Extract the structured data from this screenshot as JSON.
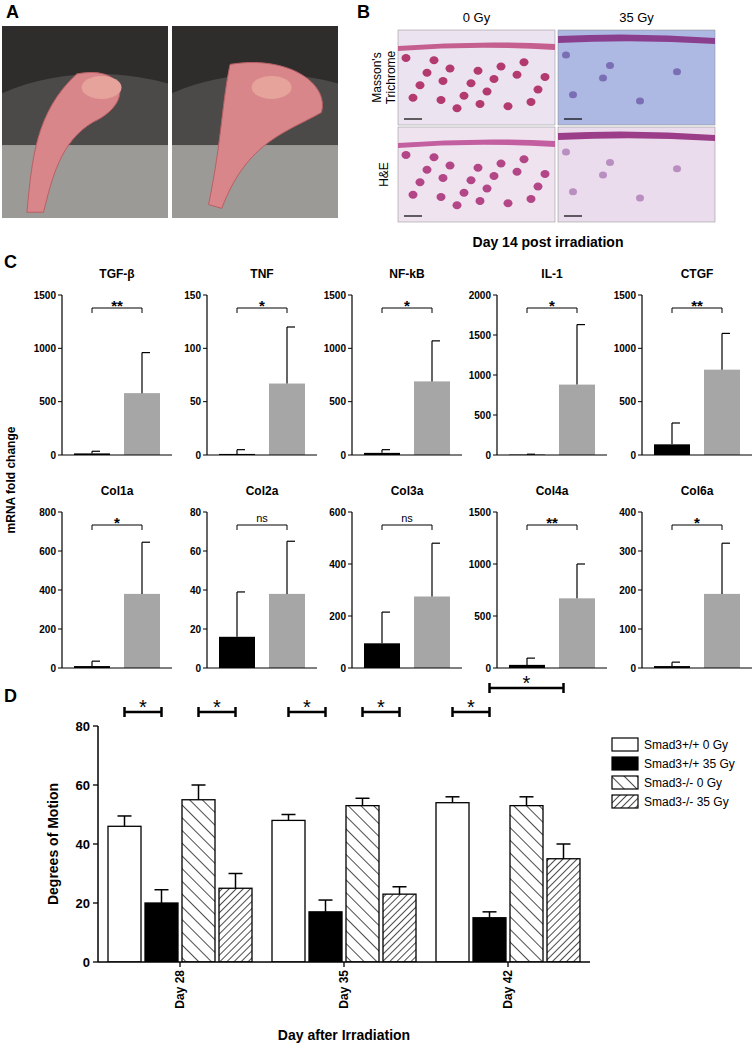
{
  "panel_labels": [
    "A",
    "B",
    "C",
    "D"
  ],
  "histology": {
    "columns": [
      "0 Gy",
      "35 Gy"
    ],
    "rows": [
      "Masson's Trichrome",
      "H&E"
    ],
    "caption": "Day 14 post irradiation"
  },
  "panel_c": {
    "ylabel": "mRNA fold change"
  },
  "chart_data": [
    {
      "type": "bar",
      "title": "TGF-β",
      "categories": [
        null,
        null
      ],
      "values": [
        15,
        580
      ],
      "errors": [
        20,
        380
      ],
      "colors": [
        "#000000",
        "#a6a6a6"
      ],
      "ylim": [
        0,
        1500
      ],
      "yticks": [
        0,
        500,
        1000,
        1500
      ],
      "annotation": "**"
    },
    {
      "type": "bar",
      "title": "TNF",
      "categories": [
        null,
        null
      ],
      "values": [
        1,
        67
      ],
      "errors": [
        4,
        53
      ],
      "colors": [
        "#000000",
        "#a6a6a6"
      ],
      "ylim": [
        0,
        150
      ],
      "yticks": [
        0,
        50,
        100,
        150
      ],
      "annotation": "*"
    },
    {
      "type": "bar",
      "title": "NF-kB",
      "categories": [
        null,
        null
      ],
      "values": [
        20,
        690
      ],
      "errors": [
        30,
        380
      ],
      "colors": [
        "#000000",
        "#a6a6a6"
      ],
      "ylim": [
        0,
        1500
      ],
      "yticks": [
        0,
        500,
        1000,
        1500
      ],
      "annotation": "*"
    },
    {
      "type": "bar",
      "title": "IL-1",
      "categories": [
        null,
        null
      ],
      "values": [
        5,
        880
      ],
      "errors": [
        5,
        750
      ],
      "colors": [
        "#000000",
        "#a6a6a6"
      ],
      "ylim": [
        0,
        2000
      ],
      "yticks": [
        0,
        500,
        1000,
        1500,
        2000
      ],
      "annotation": "*"
    },
    {
      "type": "bar",
      "title": "CTGF",
      "categories": [
        null,
        null
      ],
      "values": [
        100,
        800
      ],
      "errors": [
        200,
        340
      ],
      "colors": [
        "#000000",
        "#a6a6a6"
      ],
      "ylim": [
        0,
        1500
      ],
      "yticks": [
        0,
        500,
        1000,
        1500
      ],
      "annotation": "**"
    },
    {
      "type": "bar",
      "title": "Col1a",
      "categories": [
        null,
        null
      ],
      "values": [
        10,
        380
      ],
      "errors": [
        25,
        265
      ],
      "colors": [
        "#000000",
        "#a6a6a6"
      ],
      "ylim": [
        0,
        800
      ],
      "yticks": [
        0,
        200,
        400,
        600,
        800
      ],
      "annotation": "*"
    },
    {
      "type": "bar",
      "title": "Col2a",
      "categories": [
        null,
        null
      ],
      "values": [
        16,
        38
      ],
      "errors": [
        23,
        27
      ],
      "colors": [
        "#000000",
        "#a6a6a6"
      ],
      "ylim": [
        0,
        80
      ],
      "yticks": [
        0,
        20,
        40,
        60,
        80
      ],
      "annotation": "ns"
    },
    {
      "type": "bar",
      "title": "Col3a",
      "categories": [
        null,
        null
      ],
      "values": [
        95,
        275
      ],
      "errors": [
        120,
        205
      ],
      "colors": [
        "#000000",
        "#a6a6a6"
      ],
      "ylim": [
        0,
        600
      ],
      "yticks": [
        0,
        200,
        400,
        600
      ],
      "annotation": "ns"
    },
    {
      "type": "bar",
      "title": "Col4a",
      "categories": [
        null,
        null
      ],
      "values": [
        30,
        670
      ],
      "errors": [
        65,
        330
      ],
      "colors": [
        "#000000",
        "#a6a6a6"
      ],
      "ylim": [
        0,
        1500
      ],
      "yticks": [
        0,
        500,
        1000,
        1500
      ],
      "annotation": "**"
    },
    {
      "type": "bar",
      "title": "Col6a",
      "categories": [
        null,
        null
      ],
      "values": [
        5,
        190
      ],
      "errors": [
        10,
        130
      ],
      "colors": [
        "#000000",
        "#a6a6a6"
      ],
      "ylim": [
        0,
        400
      ],
      "yticks": [
        0,
        100,
        200,
        300,
        400
      ],
      "annotation": "*"
    },
    {
      "type": "bar",
      "xlabel": "Day after Irradiation",
      "ylabel": "Degrees of Motion",
      "categories": [
        "Day 28",
        "Day 35",
        "Day 42"
      ],
      "series": [
        {
          "name": "Smad3+/+ 0 Gy",
          "color": "#ffffff",
          "values": [
            46,
            48,
            54
          ],
          "errors": [
            3.5,
            2,
            2
          ]
        },
        {
          "name": "Smad3+/+ 35 Gy",
          "color": "#000000",
          "values": [
            20,
            17,
            15
          ],
          "errors": [
            4.5,
            4,
            2
          ]
        },
        {
          "name": "Smad3-/- 0 Gy",
          "color": "#ffffff",
          "values": [
            55,
            53,
            53
          ],
          "errors": [
            5,
            2.5,
            3
          ]
        },
        {
          "name": "Smad3-/- 35 Gy",
          "color": "#ffffff",
          "values": [
            25,
            23,
            35
          ],
          "errors": [
            5,
            2.5,
            5
          ]
        }
      ],
      "ylim": [
        0,
        80
      ],
      "yticks": [
        0,
        20,
        40,
        60,
        80
      ],
      "legend": "right",
      "annotations": [
        {
          "text": "*",
          "category": 0,
          "series": [
            0,
            1
          ]
        },
        {
          "text": "*",
          "category": 0,
          "series": [
            2,
            3
          ]
        },
        {
          "text": "*",
          "category": 1,
          "series": [
            0,
            1
          ]
        },
        {
          "text": "*",
          "category": 1,
          "series": [
            2,
            3
          ]
        },
        {
          "text": "*",
          "category": 2,
          "series": [
            0,
            1
          ]
        },
        {
          "text": "*",
          "category": 2,
          "series": [
            1,
            3
          ]
        }
      ]
    }
  ]
}
